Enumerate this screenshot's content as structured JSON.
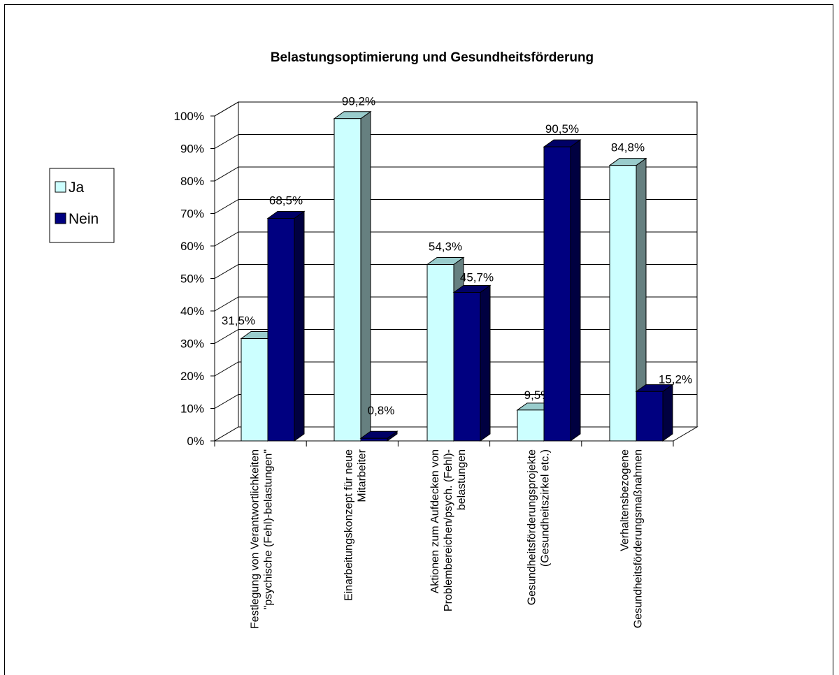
{
  "chart_data": {
    "type": "bar",
    "title": "Belastungsoptimierung und Gesundheitsförderung",
    "categories": [
      [
        "Festlegung von Verantwortlichkeiten",
        "\"psychische (Fehl)-belastungen\""
      ],
      [
        "Einarbeitungskonzept für neue",
        "Mitarbeiter"
      ],
      [
        "Aktionen zum Aufdecken von",
        "Problembereichen/psych. (Fehl)-",
        "belastungen"
      ],
      [
        "Gesundheitsförderungsprojekte",
        "(Gesundheitszirkel etc.)"
      ],
      [
        "Verhaltensbezogene",
        "Gesundheitsförderungsmaßnahmen"
      ]
    ],
    "series": [
      {
        "name": "Ja",
        "values": [
          31.5,
          99.2,
          54.3,
          9.5,
          84.8
        ],
        "labels": [
          "31,5%",
          "99,2%",
          "54,3%",
          "9,5%",
          "84,8%"
        ],
        "colors": {
          "front": "#ccffff",
          "top": "#99cccc",
          "side": "#668080"
        }
      },
      {
        "name": "Nein",
        "values": [
          68.5,
          0.8,
          45.7,
          90.5,
          15.2
        ],
        "labels": [
          "68,5%",
          "0,8%",
          "45,7%",
          "90,5%",
          "15,2%"
        ],
        "colors": {
          "front": "#000080",
          "top": "#000066",
          "side": "#000040"
        }
      }
    ],
    "ylim": [
      0,
      100
    ],
    "yticks": [
      "0%",
      "10%",
      "20%",
      "30%",
      "40%",
      "50%",
      "60%",
      "70%",
      "80%",
      "90%",
      "100%"
    ],
    "grid": true,
    "legend": "left",
    "style": "3d-clustered-column"
  }
}
